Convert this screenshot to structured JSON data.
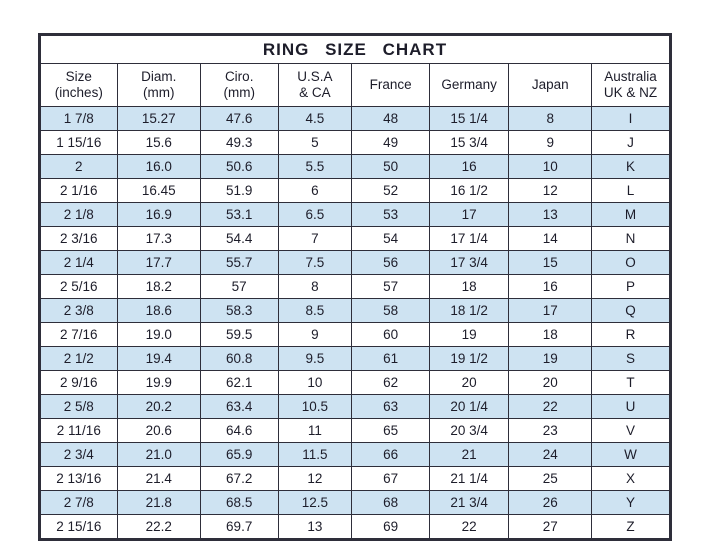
{
  "chart_data": {
    "type": "table",
    "title": "RING  SIZE  CHART",
    "columns": [
      {
        "label": "Size",
        "sub": "(inches)"
      },
      {
        "label": "Diam.",
        "sub": "(mm)"
      },
      {
        "label": "Ciro.",
        "sub": "(mm)"
      },
      {
        "label": "U.S.A",
        "sub": "& CA"
      },
      {
        "label": "France",
        "sub": ""
      },
      {
        "label": "Germany",
        "sub": ""
      },
      {
        "label": "Japan",
        "sub": ""
      },
      {
        "label": "Australia",
        "sub": "UK & NZ"
      }
    ],
    "rows": [
      [
        "1 7/8",
        "15.27",
        "47.6",
        "4.5",
        "48",
        "15 1/4",
        "8",
        "I"
      ],
      [
        "1 15/16",
        "15.6",
        "49.3",
        "5",
        "49",
        "15 3/4",
        "9",
        "J"
      ],
      [
        "2",
        "16.0",
        "50.6",
        "5.5",
        "50",
        "16",
        "10",
        "K"
      ],
      [
        "2 1/16",
        "16.45",
        "51.9",
        "6",
        "52",
        "16 1/2",
        "12",
        "L"
      ],
      [
        "2 1/8",
        "16.9",
        "53.1",
        "6.5",
        "53",
        "17",
        "13",
        "M"
      ],
      [
        "2 3/16",
        "17.3",
        "54.4",
        "7",
        "54",
        "17 1/4",
        "14",
        "N"
      ],
      [
        "2 1/4",
        "17.7",
        "55.7",
        "7.5",
        "56",
        "17 3/4",
        "15",
        "O"
      ],
      [
        "2 5/16",
        "18.2",
        "57",
        "8",
        "57",
        "18",
        "16",
        "P"
      ],
      [
        "2 3/8",
        "18.6",
        "58.3",
        "8.5",
        "58",
        "18 1/2",
        "17",
        "Q"
      ],
      [
        "2 7/16",
        "19.0",
        "59.5",
        "9",
        "60",
        "19",
        "18",
        "R"
      ],
      [
        "2 1/2",
        "19.4",
        "60.8",
        "9.5",
        "61",
        "19 1/2",
        "19",
        "S"
      ],
      [
        "2 9/16",
        "19.9",
        "62.1",
        "10",
        "62",
        "20",
        "20",
        "T"
      ],
      [
        "2 5/8",
        "20.2",
        "63.4",
        "10.5",
        "63",
        "20 1/4",
        "22",
        "U"
      ],
      [
        "2 11/16",
        "20.6",
        "64.6",
        "11",
        "65",
        "20 3/4",
        "23",
        "V"
      ],
      [
        "2 3/4",
        "21.0",
        "65.9",
        "11.5",
        "66",
        "21",
        "24",
        "W"
      ],
      [
        "2 13/16",
        "21.4",
        "67.2",
        "12",
        "67",
        "21 1/4",
        "25",
        "X"
      ],
      [
        "2 7/8",
        "21.8",
        "68.5",
        "12.5",
        "68",
        "21 3/4",
        "26",
        "Y"
      ],
      [
        "2 15/16",
        "22.2",
        "69.7",
        "13",
        "69",
        "22",
        "27",
        "Z"
      ]
    ]
  },
  "colors": {
    "row_highlight": "#cee3f2",
    "border": "#2e2e3a",
    "text": "#1d1d2a",
    "background": "#ffffff"
  }
}
